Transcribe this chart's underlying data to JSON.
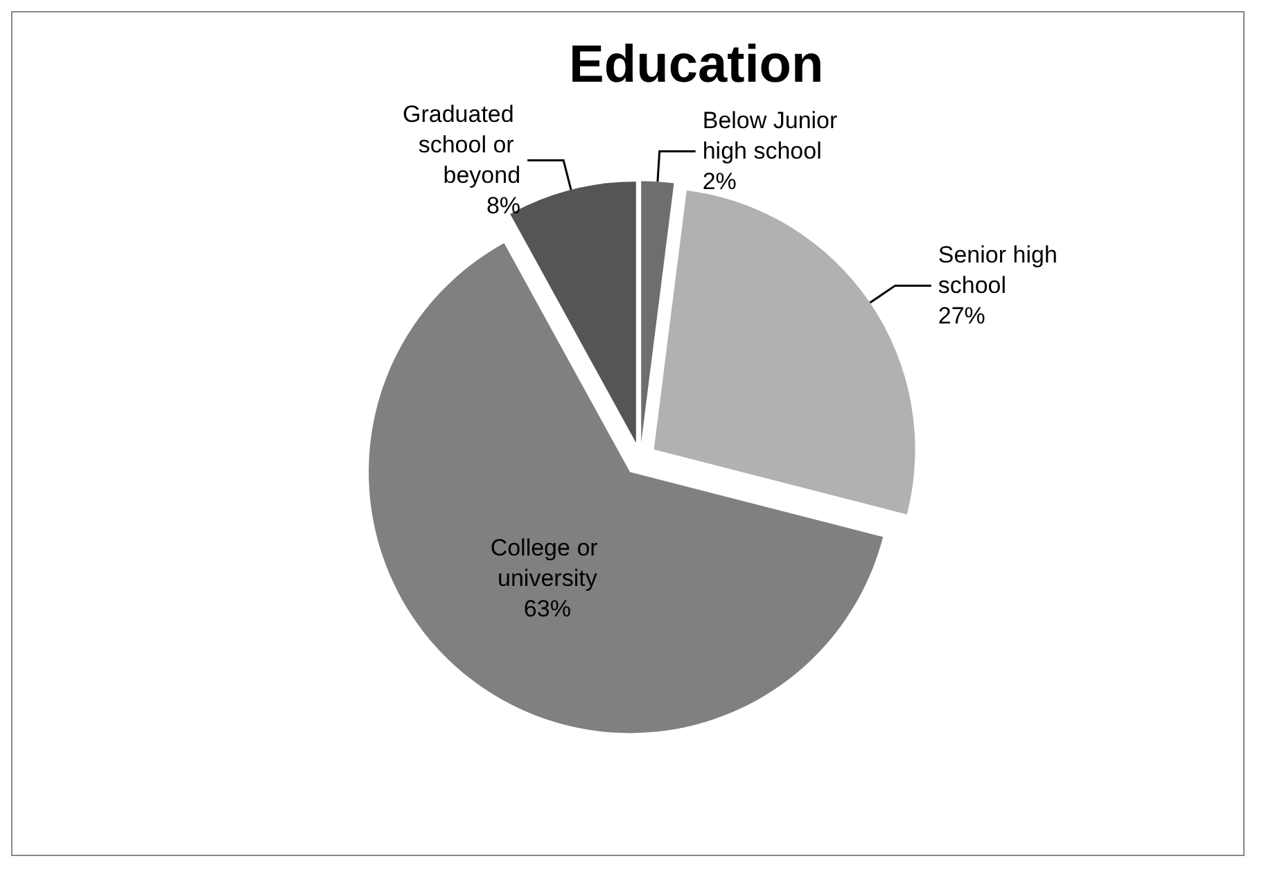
{
  "chart_data": {
    "type": "pie",
    "title": "Education",
    "categories": [
      "Below Junior high school",
      "Senior high school",
      "College or university",
      "Graduated school or beyond"
    ],
    "values": [
      2,
      27,
      63,
      8
    ],
    "colors": [
      "#6e6e6e",
      "#b1b1b1",
      "#808080",
      "#555555"
    ],
    "value_labels": [
      "2%",
      "27%",
      "63%",
      "8%"
    ]
  }
}
